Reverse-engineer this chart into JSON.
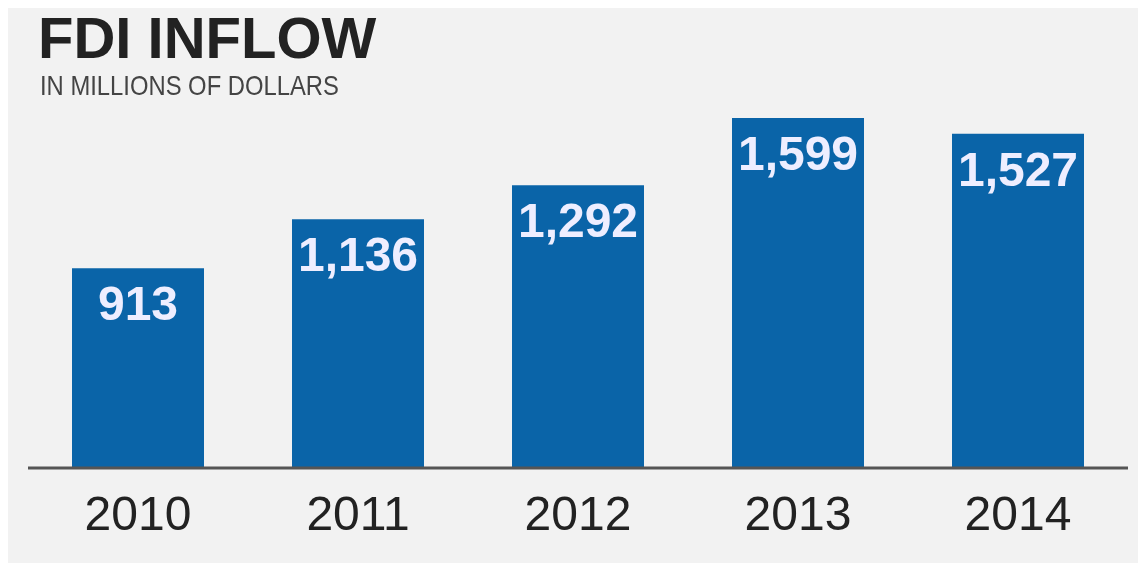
{
  "chart_data": {
    "type": "bar",
    "title": "FDI INFLOW",
    "subtitle": "IN MILLIONS OF DOLLARS",
    "categories": [
      "2010",
      "2011",
      "2012",
      "2013",
      "2014"
    ],
    "values": [
      913,
      1136,
      1292,
      1599,
      1527
    ],
    "value_labels": [
      "913",
      "1,136",
      "1,292",
      "1,599",
      "1,527"
    ],
    "color": "#0a64a8",
    "grid": false,
    "legend": false
  }
}
